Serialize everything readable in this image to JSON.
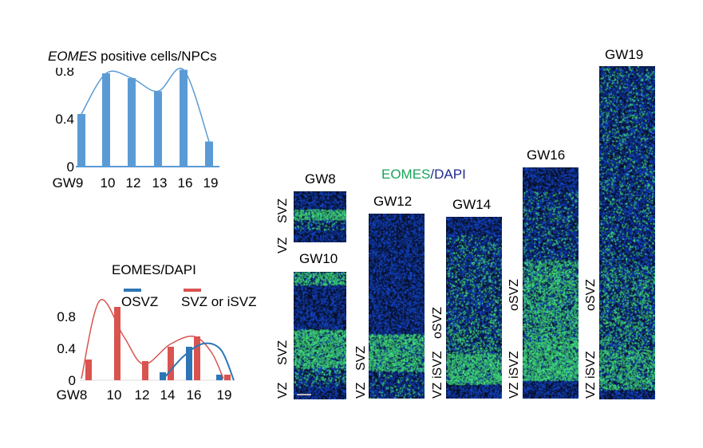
{
  "colors": {
    "bar_blue": "#5b9bd5",
    "osvz": "#2e75b6",
    "svz": "#d9534f",
    "eomes_green": "#1aa35a",
    "dapi_blue": "#1f2a8c",
    "tissue": "#1238b8"
  },
  "chart_data": [
    {
      "type": "bar",
      "title_italic": "EOMES",
      "title_rest": " positive cells/NPCs",
      "categories": [
        "GW9",
        "10",
        "12",
        "13",
        "16",
        "19"
      ],
      "values": [
        0.44,
        0.78,
        0.74,
        0.63,
        0.81,
        0.21
      ],
      "yticks": [
        "0",
        "0.4",
        "0.8"
      ],
      "ylim": [
        0,
        0.9
      ],
      "smooth_line": true
    },
    {
      "type": "bar",
      "title": "EOMES/DAPI",
      "categories": [
        "GW8",
        "10",
        "12",
        "14",
        "16",
        "19"
      ],
      "series": [
        {
          "name": "OSVZ",
          "values": [
            0,
            0,
            0,
            0.1,
            0.42,
            0.07
          ]
        },
        {
          "name": "SVZ or iSVZ",
          "values": [
            0.26,
            0.92,
            0.24,
            0.42,
            0.55,
            0.07
          ]
        }
      ],
      "yticks": [
        "0",
        "0.4",
        "0.8"
      ],
      "ylim": [
        0,
        1.1
      ],
      "smooth_line": true
    }
  ],
  "micrographs": {
    "title_green": "EOMES",
    "title_sep": "/",
    "title_blue": "DAPI",
    "panels": [
      {
        "label": "GW8",
        "zones": [
          "VZ",
          "SVZ"
        ]
      },
      {
        "label": "GW10",
        "zones": [
          "VZ",
          "SVZ"
        ]
      },
      {
        "label": "GW12",
        "zones": [
          "VZ",
          "SVZ"
        ]
      },
      {
        "label": "GW14",
        "zones": [
          "VZ",
          "iSVZ",
          "oSVZ"
        ]
      },
      {
        "label": "GW16",
        "zones": [
          "VZ",
          "iSVZ",
          "oSVZ"
        ]
      },
      {
        "label": "GW19",
        "zones": [
          "VZ",
          "iSVZ",
          "oSVZ"
        ]
      }
    ]
  }
}
